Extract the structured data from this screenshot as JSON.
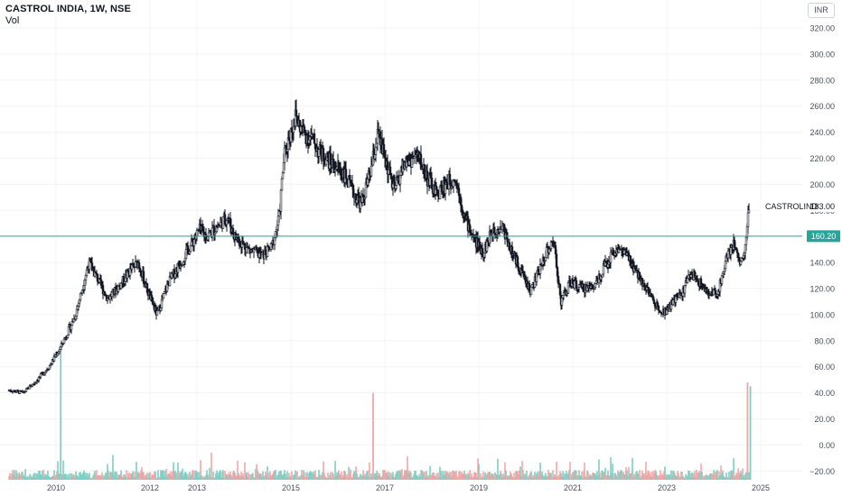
{
  "header": {
    "title": "CASTROL INDIA, 1W, NSE",
    "volume_label": "Vol",
    "currency": "INR"
  },
  "chart_data": {
    "type": "candlestick",
    "symbol_label": "CASTROLIND",
    "last_price_label": "183.00",
    "horizontal_line": {
      "value": 160.2,
      "label": "160.20",
      "color": "#26a69a"
    },
    "y_axis": {
      "ylim": [
        -20,
        330
      ],
      "ticks": [
        "320.00",
        "300.00",
        "280.00",
        "260.00",
        "240.00",
        "220.00",
        "200.00",
        "180.00",
        "160.00",
        "140.00",
        "120.00",
        "100.00",
        "80.00",
        "60.00",
        "40.00",
        "20.00",
        "0.00",
        "−20.00"
      ]
    },
    "x_axis": {
      "ticks": [
        "2010",
        "2012",
        "2013",
        "2015",
        "2017",
        "2019",
        "2021",
        "2023",
        "2025"
      ],
      "xlim": [
        2009.0,
        2025.5
      ]
    },
    "price_path": [
      [
        2009.0,
        42
      ],
      [
        2009.3,
        40
      ],
      [
        2009.55,
        48
      ],
      [
        2009.85,
        60
      ],
      [
        2010.1,
        75
      ],
      [
        2010.4,
        98
      ],
      [
        2010.7,
        140
      ],
      [
        2010.85,
        130
      ],
      [
        2011.1,
        112
      ],
      [
        2011.35,
        122
      ],
      [
        2011.6,
        135
      ],
      [
        2011.75,
        140
      ],
      [
        2011.95,
        118
      ],
      [
        2012.15,
        100
      ],
      [
        2012.4,
        125
      ],
      [
        2012.65,
        140
      ],
      [
        2012.9,
        155
      ],
      [
        2013.05,
        165
      ],
      [
        2013.2,
        160
      ],
      [
        2013.45,
        168
      ],
      [
        2013.65,
        175
      ],
      [
        2013.8,
        160
      ],
      [
        2014.1,
        150
      ],
      [
        2014.4,
        145
      ],
      [
        2014.6,
        152
      ],
      [
        2014.75,
        175
      ],
      [
        2014.85,
        220
      ],
      [
        2014.95,
        235
      ],
      [
        2015.1,
        252
      ],
      [
        2015.25,
        240
      ],
      [
        2015.45,
        235
      ],
      [
        2015.6,
        225
      ],
      [
        2015.9,
        215
      ],
      [
        2016.1,
        210
      ],
      [
        2016.3,
        195
      ],
      [
        2016.5,
        185
      ],
      [
        2016.7,
        210
      ],
      [
        2016.85,
        238
      ],
      [
        2017.0,
        220
      ],
      [
        2017.2,
        195
      ],
      [
        2017.4,
        215
      ],
      [
        2017.7,
        222
      ],
      [
        2017.9,
        205
      ],
      [
        2018.1,
        192
      ],
      [
        2018.3,
        200
      ],
      [
        2018.5,
        205
      ],
      [
        2018.7,
        175
      ],
      [
        2018.9,
        158
      ],
      [
        2019.1,
        148
      ],
      [
        2019.3,
        165
      ],
      [
        2019.5,
        168
      ],
      [
        2019.7,
        148
      ],
      [
        2019.95,
        130
      ],
      [
        2020.1,
        118
      ],
      [
        2020.3,
        135
      ],
      [
        2020.45,
        150
      ],
      [
        2020.6,
        155
      ],
      [
        2020.75,
        110
      ],
      [
        2020.95,
        125
      ],
      [
        2021.2,
        120
      ],
      [
        2021.45,
        122
      ],
      [
        2021.65,
        135
      ],
      [
        2021.9,
        150
      ],
      [
        2022.1,
        148
      ],
      [
        2022.3,
        135
      ],
      [
        2022.55,
        122
      ],
      [
        2022.75,
        108
      ],
      [
        2022.95,
        102
      ],
      [
        2023.15,
        110
      ],
      [
        2023.35,
        118
      ],
      [
        2023.5,
        132
      ],
      [
        2023.7,
        125
      ],
      [
        2023.9,
        115
      ],
      [
        2024.1,
        118
      ],
      [
        2024.3,
        148
      ],
      [
        2024.45,
        155
      ],
      [
        2024.55,
        140
      ],
      [
        2024.65,
        145
      ],
      [
        2024.75,
        183
      ]
    ],
    "volume_spikes": [
      {
        "x": 2010.1,
        "v": 75,
        "side": "up"
      },
      {
        "x": 2016.75,
        "v": 40,
        "side": "down"
      },
      {
        "x": 2024.72,
        "v": 48,
        "side": "down"
      },
      {
        "x": 2024.78,
        "v": 45,
        "side": "up"
      }
    ],
    "colors": {
      "candle": "#131722",
      "volume_up": "#7fcfc4",
      "volume_down": "#f3a6a6",
      "grid": "#f2f3f5",
      "axis_text": "#4a4f5c"
    }
  }
}
